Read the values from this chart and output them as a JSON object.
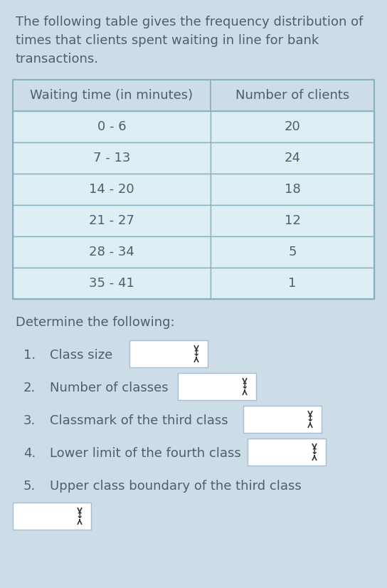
{
  "bg_color": "#ccdde8",
  "header_bg": "#ccdde8",
  "cell_bg": "#ddeef5",
  "border_color": "#8ab0be",
  "text_color": "#4a6070",
  "intro_lines": [
    "The following table gives the frequency distribution of",
    "times that clients spent waiting in line for bank",
    "transactions."
  ],
  "col1_header": "Waiting time (in minutes)",
  "col2_header": "Number of clients",
  "rows": [
    [
      "0 - 6",
      "20"
    ],
    [
      "7 - 13",
      "24"
    ],
    [
      "14 - 20",
      "18"
    ],
    [
      "21 - 27",
      "12"
    ],
    [
      "28 - 34",
      "5"
    ],
    [
      "35 - 41",
      "1"
    ]
  ],
  "determine_text": "Determine the following:",
  "questions": [
    "Class size",
    "Number of classes",
    "Classmark of the third class",
    "Lower limit of the fourth class",
    "Upper class boundary of the third class"
  ],
  "intro_fontsize": 13.0,
  "header_fontsize": 13.0,
  "cell_fontsize": 13.0,
  "question_fontsize": 13.0,
  "box_color": "#ffffff",
  "box_border": "#aabbcc",
  "arrow_color": "#333333"
}
